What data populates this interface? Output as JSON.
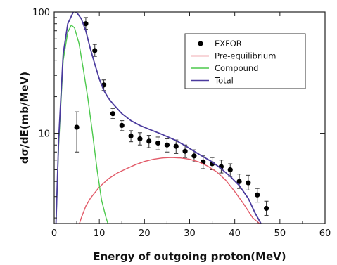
{
  "chart_data": {
    "type": "line",
    "xlabel": "Energy of outgoing proton(MeV)",
    "ylabel": "dσ/dE(mb/MeV)",
    "x_ticks": [
      0,
      10,
      20,
      30,
      40,
      50,
      60
    ],
    "y_ticks": [
      {
        "value": 10,
        "label": "10"
      },
      {
        "value": 100,
        "label": "100"
      }
    ],
    "xlim": [
      0,
      60
    ],
    "ylim": [
      1.8,
      100
    ],
    "yscale": "log",
    "grid": false,
    "legend_position": "top-right",
    "series": [
      {
        "name": "EXFOR",
        "kind": "points",
        "color": "#000000",
        "x": [
          5,
          7,
          9,
          11,
          13,
          15,
          17,
          19,
          21,
          23,
          25,
          27,
          29,
          31,
          33,
          35,
          37,
          39,
          41,
          43,
          45,
          47
        ],
        "y": [
          11.2,
          80,
          48,
          25,
          14.5,
          11.6,
          9.5,
          9.0,
          8.6,
          8.3,
          8.0,
          7.8,
          7.1,
          6.5,
          5.8,
          5.6,
          5.3,
          5.0,
          4.0,
          3.9,
          3.1,
          2.4
        ],
        "err_low": [
          7.0,
          72,
          43,
          22.5,
          13.2,
          10.5,
          8.5,
          8.0,
          7.6,
          7.3,
          7.0,
          6.8,
          6.3,
          5.8,
          5.1,
          5.0,
          4.7,
          4.4,
          3.5,
          3.4,
          2.7,
          2.1
        ],
        "err_high": [
          15,
          90,
          54,
          27.5,
          16.0,
          12.7,
          10.5,
          10.1,
          9.6,
          9.3,
          9.0,
          8.8,
          8.0,
          7.3,
          6.5,
          6.3,
          6.0,
          5.6,
          4.6,
          4.5,
          3.5,
          2.75
        ]
      },
      {
        "name": "Pre-equilibrium",
        "kind": "line",
        "color": "#e25a68",
        "x": [
          5.6,
          6,
          7,
          8,
          10,
          12,
          14,
          16,
          18,
          20,
          22,
          24,
          26,
          28,
          30,
          32,
          34,
          36,
          38,
          40,
          42,
          44,
          45.5
        ],
        "y": [
          1.8,
          2.0,
          2.5,
          2.9,
          3.6,
          4.2,
          4.7,
          5.1,
          5.5,
          5.85,
          6.1,
          6.25,
          6.3,
          6.25,
          6.1,
          5.8,
          5.35,
          4.8,
          4.1,
          3.3,
          2.6,
          2.0,
          1.8
        ]
      },
      {
        "name": "Compound",
        "kind": "line",
        "color": "#4cc94c",
        "x": [
          0.4,
          1,
          2,
          3,
          3.8,
          4.5,
          5.5,
          6.5,
          7.5,
          8.5,
          9.5,
          10.5,
          11.5,
          11.9
        ],
        "y": [
          1.8,
          8,
          40,
          68,
          78,
          74,
          55,
          33,
          19,
          10,
          5,
          2.8,
          2.0,
          1.8
        ]
      },
      {
        "name": "Total",
        "kind": "line",
        "color": "#4b3b9e",
        "x": [
          0.4,
          1,
          2,
          3,
          4.3,
          5,
          6,
          7,
          8,
          9,
          10,
          11,
          12,
          13,
          15,
          17,
          19,
          21,
          23,
          25,
          27,
          29,
          31,
          33,
          35,
          37,
          39,
          41,
          43,
          44.5,
          45.8
        ],
        "y": [
          1.8,
          9,
          45,
          80,
          101,
          99,
          88,
          70,
          50,
          37,
          28,
          22.5,
          19.5,
          17.5,
          14.5,
          12.7,
          11.6,
          10.8,
          10.1,
          9.4,
          8.7,
          7.9,
          7.1,
          6.4,
          5.8,
          5.1,
          4.4,
          3.7,
          2.9,
          2.2,
          1.8
        ]
      }
    ]
  }
}
